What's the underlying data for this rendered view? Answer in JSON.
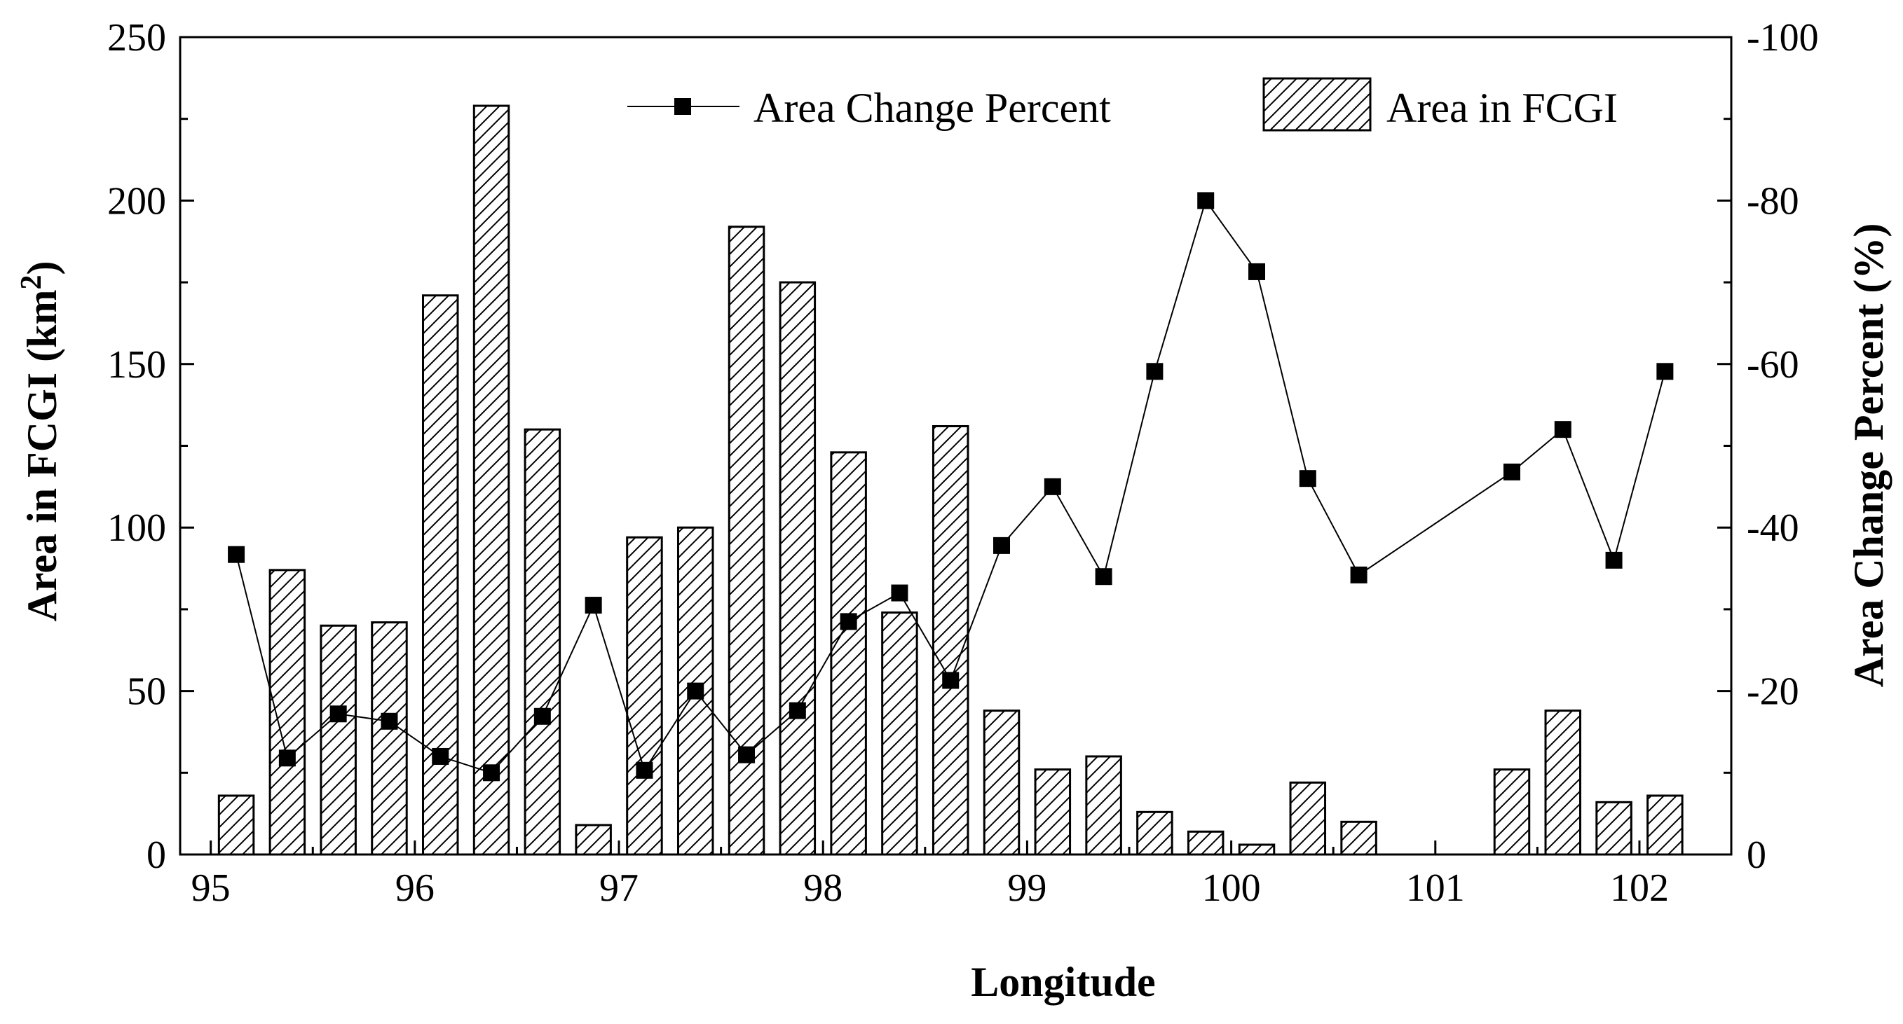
{
  "chart_data": {
    "type": "bar+line",
    "xlabel": "Longitude",
    "ylabel_left": "Area in FCGI (km",
    "ylabel_left_sup": "2",
    "ylabel_left_suffix": ")",
    "ylabel_right": "Area Change Percent (%)",
    "xlim": [
      94.85,
      102.45
    ],
    "ylim_left": [
      0,
      250
    ],
    "ylim_right": [
      0,
      -100
    ],
    "x_ticks": [
      95,
      96,
      97,
      98,
      99,
      100,
      101,
      102
    ],
    "y_left_ticks": [
      0,
      50,
      100,
      150,
      200,
      250
    ],
    "y_right_ticks": [
      0,
      -20,
      -40,
      -60,
      -80,
      -100
    ],
    "legend": {
      "placement": "top-right",
      "line_label": "Area Change Percent",
      "bar_label": "Area in FCGI"
    },
    "series": [
      {
        "name": "Area in FCGI",
        "type": "bar",
        "axis": "left",
        "x": [
          95.125,
          95.375,
          95.625,
          95.875,
          96.125,
          96.375,
          96.625,
          96.875,
          97.125,
          97.375,
          97.625,
          97.875,
          98.125,
          98.375,
          98.625,
          98.875,
          99.125,
          99.375,
          99.625,
          99.875,
          100.125,
          100.375,
          100.625,
          101.375,
          101.625,
          101.875,
          102.125
        ],
        "values": [
          18,
          87,
          70,
          71,
          171,
          229,
          130,
          9,
          97,
          100,
          192,
          175,
          123,
          74,
          131,
          44,
          26,
          30,
          13,
          7,
          3,
          22,
          10,
          26,
          44,
          16,
          18
        ]
      },
      {
        "name": "Area Change Percent",
        "type": "line",
        "axis": "right",
        "x": [
          95.125,
          95.375,
          95.625,
          95.875,
          96.125,
          96.375,
          96.625,
          96.875,
          97.125,
          97.375,
          97.625,
          97.875,
          98.125,
          98.375,
          98.625,
          98.875,
          99.125,
          99.375,
          99.625,
          99.875,
          100.125,
          100.375,
          100.625,
          101.375,
          101.625,
          101.875,
          102.125
        ],
        "values": [
          -36.7,
          -11.8,
          -17.2,
          -16.3,
          -12.0,
          -10.0,
          -16.9,
          -30.5,
          -10.3,
          -20.0,
          -12.2,
          -17.6,
          -28.5,
          -32.0,
          -21.3,
          -37.8,
          -45.0,
          -34.0,
          -59.1,
          -80.0,
          -71.3,
          -46.0,
          -34.2,
          -46.8,
          -52.0,
          -36.0,
          -59.1
        ]
      }
    ]
  }
}
